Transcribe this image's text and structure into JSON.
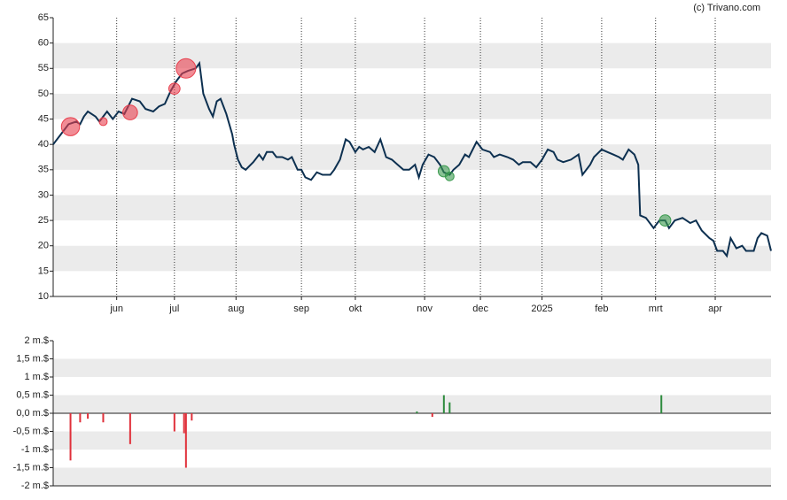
{
  "chart_data": [
    {
      "type": "line",
      "watermark": "(c) Trivano.com",
      "xlim": [
        0,
        373
      ],
      "xticks": [
        {
          "value": 33,
          "label": "jun"
        },
        {
          "value": 63,
          "label": "jul"
        },
        {
          "value": 95,
          "label": "aug"
        },
        {
          "value": 129,
          "label": "sep"
        },
        {
          "value": 157,
          "label": "okt"
        },
        {
          "value": 193,
          "label": "nov"
        },
        {
          "value": 222,
          "label": "dec"
        },
        {
          "value": 254,
          "label": "2025"
        },
        {
          "value": 285,
          "label": "feb"
        },
        {
          "value": 313,
          "label": "mrt"
        },
        {
          "value": 344,
          "label": "apr"
        }
      ],
      "ylim": [
        10,
        65
      ],
      "yticks": [
        10,
        15,
        20,
        25,
        30,
        35,
        40,
        45,
        50,
        55,
        60,
        65
      ],
      "grid": true,
      "series": [
        {
          "color": "#0d3050",
          "x": [
            0,
            5,
            8,
            12,
            14,
            16,
            18,
            22,
            24,
            28,
            31,
            34,
            37,
            41,
            45,
            48,
            52,
            55,
            58,
            61,
            64,
            67,
            70,
            74,
            76,
            78,
            81,
            83,
            85,
            87,
            90,
            93,
            94,
            96,
            98,
            100,
            104,
            107,
            109,
            111,
            114,
            116,
            119,
            122,
            124,
            127,
            129,
            131,
            134,
            137,
            140,
            144,
            146,
            149,
            152,
            154,
            157,
            159,
            161,
            164,
            167,
            170,
            173,
            176,
            179,
            182,
            185,
            188,
            190,
            192,
            195,
            198,
            201,
            203,
            206,
            208,
            211,
            214,
            216,
            220,
            223,
            227,
            229,
            232,
            236,
            239,
            242,
            244,
            248,
            251,
            254,
            257,
            260,
            262,
            265,
            269,
            273,
            275,
            279,
            281,
            285,
            288,
            291,
            294,
            296,
            299,
            302,
            304,
            305,
            308,
            312,
            315,
            318,
            320,
            323,
            327,
            331,
            334,
            337,
            341,
            343,
            345,
            348,
            350,
            352,
            355,
            358,
            360,
            364,
            366,
            368,
            371,
            373
          ],
          "values": [
            40,
            42.5,
            44,
            44.5,
            44,
            45.5,
            46.5,
            45.5,
            44.5,
            46.5,
            45,
            46.5,
            46,
            49,
            48.5,
            47,
            46.5,
            47.5,
            48,
            50.5,
            52.5,
            54,
            54.5,
            55,
            56,
            50,
            47,
            45.5,
            48.5,
            49,
            46,
            42,
            40,
            37,
            35.5,
            35,
            36.5,
            38,
            37,
            38.5,
            38.5,
            37.5,
            37.5,
            37,
            37.5,
            35,
            35,
            33.5,
            33,
            34.5,
            34,
            34,
            35,
            37,
            41,
            40.5,
            38.5,
            39.5,
            39,
            39.5,
            38.5,
            41,
            37.5,
            37,
            36,
            35,
            35,
            36,
            33.5,
            36,
            38,
            37.5,
            36,
            34.5,
            34,
            35,
            36,
            38,
            37.5,
            40.5,
            39,
            38.5,
            37.5,
            38,
            37.5,
            37,
            36,
            36.5,
            36.5,
            35.5,
            37,
            39,
            38.5,
            37,
            36.5,
            37,
            38,
            34,
            36,
            37.5,
            39,
            38.5,
            38,
            37.5,
            37,
            39,
            38,
            36,
            26,
            25.5,
            23.5,
            25,
            25,
            23.5,
            25,
            25.5,
            24.5,
            25,
            23,
            21.5,
            21,
            19,
            19,
            18,
            21.5,
            19.5,
            20,
            19,
            19,
            21.5,
            22.5,
            22,
            19
          ]
        }
      ],
      "markers": {
        "x": [
          9,
          26,
          40,
          63,
          69,
          203,
          206,
          318
        ],
        "values": [
          43.5,
          44.5,
          46.3,
          51,
          55,
          34.7,
          33.7,
          25
        ],
        "sizes": [
          1.3,
          0.25,
          0.85,
          0.5,
          1.5,
          0.5,
          0.3,
          0.5
        ],
        "colors": [
          "#e8404e",
          "#e8404e",
          "#e8404e",
          "#e8404e",
          "#e8404e",
          "#3a9a4e",
          "#3a9a4e",
          "#3a9a4e"
        ]
      }
    },
    {
      "type": "bar",
      "xlim": [
        0,
        373
      ],
      "ylim": [
        -2,
        2
      ],
      "yticks": [
        {
          "value": -2,
          "label": "-2 m.$"
        },
        {
          "value": -1.5,
          "label": "-1,5 m.$"
        },
        {
          "value": -1,
          "label": "-1 m.$"
        },
        {
          "value": -0.5,
          "label": "-0,5 m.$"
        },
        {
          "value": 0,
          "label": "0,0 m.$"
        },
        {
          "value": 0.5,
          "label": "0,5 m.$"
        },
        {
          "value": 1,
          "label": "1 m.$"
        },
        {
          "value": 1.5,
          "label": "1,5 m.$"
        },
        {
          "value": 2,
          "label": "2 m.$"
        }
      ],
      "grid": true,
      "x": [
        9,
        14,
        18,
        26,
        40,
        63,
        68,
        69,
        72,
        189,
        197,
        203,
        206,
        316
      ],
      "values": [
        -1.3,
        -0.25,
        -0.15,
        -0.25,
        -0.85,
        -0.5,
        -0.55,
        -1.5,
        -0.2,
        0.05,
        -0.1,
        0.5,
        0.3,
        0.5
      ],
      "colors": [
        "#e0303a",
        "#e0303a",
        "#e0303a",
        "#e0303a",
        "#e0303a",
        "#e0303a",
        "#e0303a",
        "#e0303a",
        "#e0303a",
        "#2e8b3e",
        "#e0303a",
        "#2e8b3e",
        "#2e8b3e",
        "#2e8b3e"
      ]
    }
  ]
}
